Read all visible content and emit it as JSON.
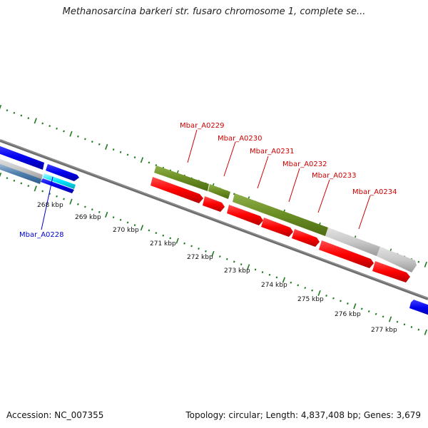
{
  "title": "Methanosarcina barkeri str. fusaro chromosome 1, complete se...",
  "footer": {
    "accession": "Accession: NC_007355",
    "summary": "Topology: circular; Length: 4,837,408 bp; Genes: 3,679"
  },
  "colors": {
    "backbone": "#6e6e6e",
    "tick": "#1f7a1f",
    "label_red": "#cc0000",
    "label_blue": "#0000cc",
    "gene_green": "#6b8e23",
    "gene_red": "#ff0000",
    "gene_blue": "#0000ee",
    "gene_cyan": "#00e5ff",
    "gene_gray": "#c8c8c8",
    "gene_steel": "#4f7fae"
  },
  "scale_labels": [
    "268 kbp",
    "269 kbp",
    "270 kbp",
    "271 kbp",
    "272 kbp",
    "273 kbp",
    "274 kbp",
    "275 kbp",
    "276 kbp",
    "277 kbp"
  ],
  "gene_labels": [
    {
      "name": "Mbar_A0229",
      "color": "red"
    },
    {
      "name": "Mbar_A0230",
      "color": "red"
    },
    {
      "name": "Mbar_A0231",
      "color": "red"
    },
    {
      "name": "Mbar_A0232",
      "color": "red"
    },
    {
      "name": "Mbar_A0233",
      "color": "red"
    },
    {
      "name": "Mbar_A0234",
      "color": "red"
    },
    {
      "name": "Mbar_A0228",
      "color": "blue"
    }
  ]
}
